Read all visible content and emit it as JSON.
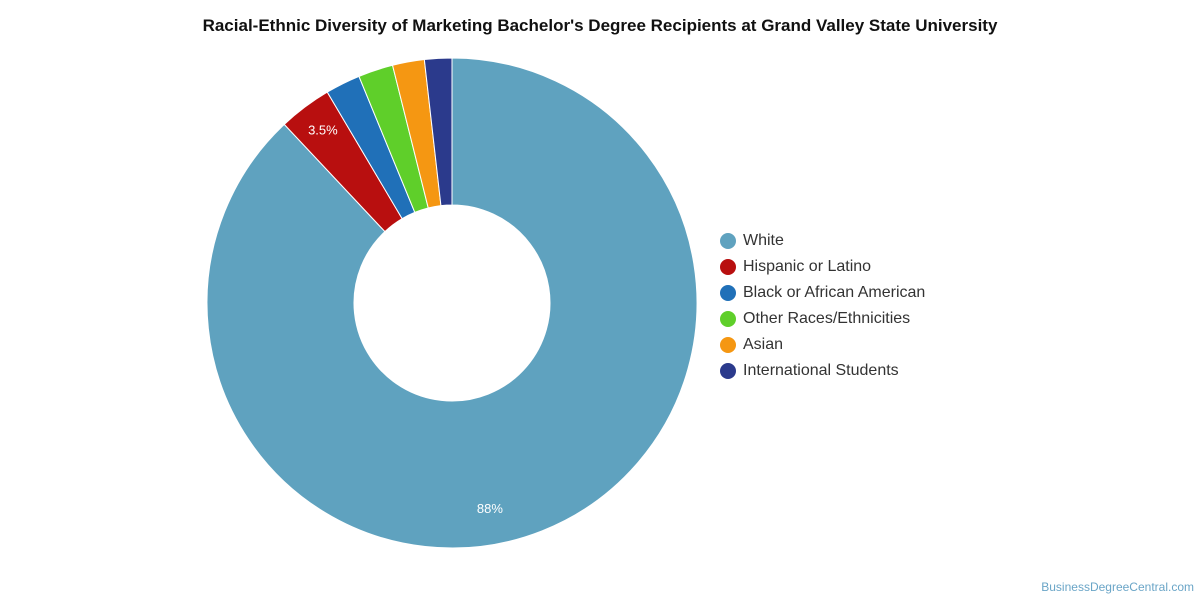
{
  "chart_data": {
    "type": "pie",
    "title": "Racial-Ethnic Diversity of Marketing Bachelor's Degree Recipients at Grand Valley State University",
    "categories": [
      "White",
      "Hispanic or Latino",
      "Black or African American",
      "Other Races/Ethnicities",
      "Asian",
      "International Students"
    ],
    "values": [
      88.0,
      3.5,
      2.3,
      2.3,
      2.1,
      1.8
    ],
    "colors": [
      "#5fa2bf",
      "#b80f0f",
      "#2070b8",
      "#5fcf2a",
      "#f59712",
      "#2b3a8c"
    ],
    "data_labels": [
      "88%",
      "3.5%",
      "",
      "",
      "",
      ""
    ],
    "donut": true,
    "legend_position": "right"
  },
  "watermark": "BusinessDegreeCentral.com"
}
